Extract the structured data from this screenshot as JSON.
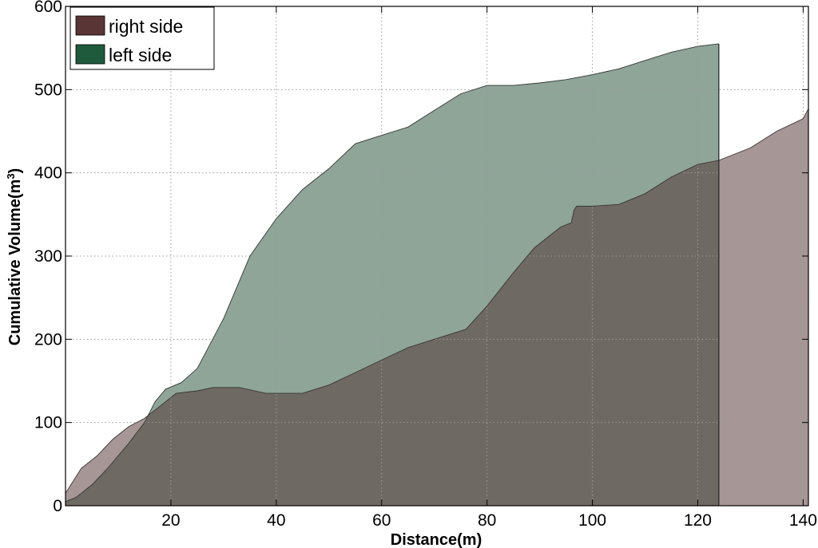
{
  "chart_data": {
    "type": "area",
    "xlabel": "Distance(m)",
    "ylabel": "Cumulative Volume(m",
    "ylabel_superscript": "3",
    "ylabel_close": ")",
    "xlim": [
      0,
      141
    ],
    "ylim": [
      0,
      600
    ],
    "xticks": [
      20,
      40,
      60,
      80,
      100,
      120,
      140
    ],
    "yticks": [
      0,
      100,
      200,
      300,
      400,
      500,
      600
    ],
    "grid": true,
    "legend_position": "top-left",
    "series": [
      {
        "name": "right side",
        "legend_color": "#5a3535",
        "fill_color": "#a69696",
        "x": [
          0,
          1.5,
          3,
          6,
          9,
          12,
          15,
          18,
          21,
          25,
          28,
          33,
          38,
          45,
          50,
          55,
          60,
          65,
          70,
          76,
          80,
          85,
          89,
          92,
          94,
          96,
          96.5,
          97,
          100,
          105,
          110,
          115,
          120,
          124,
          130,
          135,
          140,
          141
        ],
        "y": [
          15,
          30,
          45,
          60,
          80,
          95,
          105,
          120,
          135,
          138,
          142,
          142,
          135,
          135,
          145,
          160,
          175,
          190,
          200,
          212,
          240,
          280,
          310,
          325,
          335,
          340,
          355,
          360,
          360,
          362,
          375,
          395,
          410,
          415,
          430,
          450,
          465,
          477
        ]
      },
      {
        "name": "left side",
        "legend_color": "#1f5a3c",
        "fill_color": "#8ea598",
        "x": [
          0,
          2,
          5,
          8,
          12,
          15,
          17,
          19,
          22,
          25,
          30,
          35,
          40,
          45,
          50,
          55,
          60,
          65,
          70,
          75,
          80,
          85,
          90,
          95,
          100,
          105,
          110,
          115,
          120,
          124
        ],
        "y": [
          5,
          10,
          25,
          45,
          75,
          100,
          125,
          140,
          148,
          165,
          225,
          300,
          345,
          380,
          405,
          435,
          445,
          455,
          475,
          495,
          505,
          505,
          508,
          512,
          518,
          525,
          535,
          545,
          552,
          555
        ]
      }
    ]
  }
}
